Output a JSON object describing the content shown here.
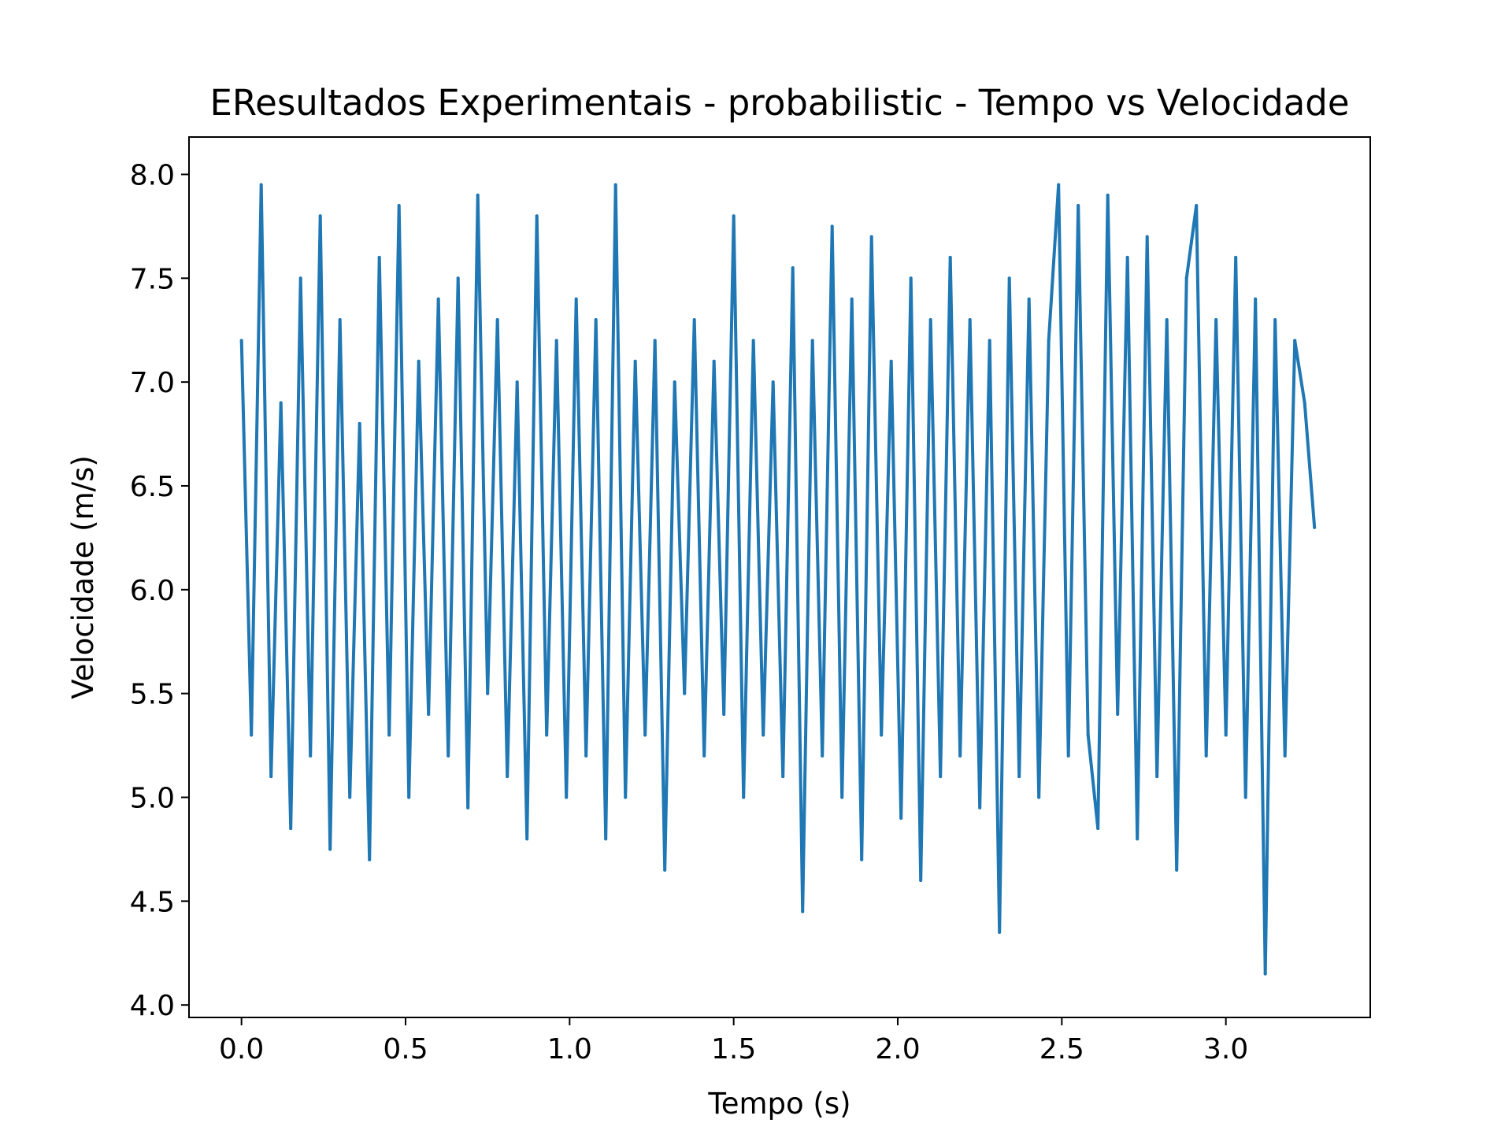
{
  "chart_data": {
    "type": "line",
    "title": "EResultados Experimentais - probabilistic - Tempo vs Velocidade",
    "xlabel": "Tempo (s)",
    "ylabel": "Velocidade (m/s)",
    "xlim": [
      -0.16,
      3.44
    ],
    "ylim": [
      3.94,
      8.18
    ],
    "xticks": [
      0.0,
      0.5,
      1.0,
      1.5,
      2.0,
      2.5,
      3.0
    ],
    "xtick_labels": [
      "0.0",
      "0.5",
      "1.0",
      "1.5",
      "2.0",
      "2.5",
      "3.0"
    ],
    "yticks": [
      4.0,
      4.5,
      5.0,
      5.5,
      6.0,
      6.5,
      7.0,
      7.5,
      8.0
    ],
    "ytick_labels": [
      "4.0",
      "4.5",
      "5.0",
      "5.5",
      "6.0",
      "6.5",
      "7.0",
      "7.5",
      "8.0"
    ],
    "grid": false,
    "legend": "none",
    "series": [
      {
        "color": "#1f77b4",
        "x": [
          0.0,
          0.03,
          0.06,
          0.09,
          0.12,
          0.15,
          0.18,
          0.21,
          0.24,
          0.27,
          0.3,
          0.33,
          0.36,
          0.39,
          0.42,
          0.45,
          0.48,
          0.51,
          0.54,
          0.57,
          0.6,
          0.63,
          0.66,
          0.69,
          0.72,
          0.75,
          0.78,
          0.81,
          0.84,
          0.87,
          0.9,
          0.93,
          0.96,
          0.99,
          1.02,
          1.05,
          1.08,
          1.11,
          1.14,
          1.17,
          1.2,
          1.23,
          1.26,
          1.29,
          1.32,
          1.35,
          1.38,
          1.41,
          1.44,
          1.47,
          1.5,
          1.53,
          1.56,
          1.59,
          1.62,
          1.65,
          1.68,
          1.71,
          1.74,
          1.77,
          1.8,
          1.83,
          1.86,
          1.89,
          1.92,
          1.95,
          1.98,
          2.01,
          2.04,
          2.07,
          2.1,
          2.13,
          2.16,
          2.19,
          2.22,
          2.25,
          2.28,
          2.31,
          2.34,
          2.37,
          2.4,
          2.43,
          2.46,
          2.49,
          2.52,
          2.55,
          2.58,
          2.61,
          2.64,
          2.67,
          2.7,
          2.73,
          2.76,
          2.79,
          2.82,
          2.85,
          2.88,
          2.91,
          2.94,
          2.97,
          3.0,
          3.03,
          3.06,
          3.09,
          3.12,
          3.15,
          3.18,
          3.21,
          3.24,
          3.27
        ],
        "y": [
          7.2,
          5.3,
          7.95,
          5.1,
          6.9,
          4.85,
          7.5,
          5.2,
          7.8,
          4.75,
          7.3,
          5.0,
          6.8,
          4.7,
          7.6,
          5.3,
          7.85,
          5.0,
          7.1,
          5.4,
          7.4,
          5.2,
          7.5,
          4.95,
          7.9,
          5.5,
          7.3,
          5.1,
          7.0,
          4.8,
          7.8,
          5.3,
          7.2,
          5.0,
          7.4,
          5.2,
          7.3,
          4.8,
          7.95,
          5.0,
          7.1,
          5.3,
          7.2,
          4.65,
          7.0,
          5.5,
          7.3,
          5.2,
          7.1,
          5.4,
          7.8,
          5.0,
          7.2,
          5.3,
          7.0,
          5.1,
          7.55,
          4.45,
          7.2,
          5.2,
          7.75,
          5.0,
          7.4,
          4.7,
          7.7,
          5.3,
          7.1,
          4.9,
          7.5,
          4.6,
          7.3,
          5.1,
          7.6,
          5.2,
          7.3,
          4.95,
          7.2,
          4.35,
          7.5,
          5.1,
          7.4,
          5.0,
          7.2,
          7.95,
          5.2,
          7.85,
          5.3,
          4.85,
          7.9,
          5.4,
          7.6,
          4.8,
          7.7,
          5.1,
          7.3,
          4.65,
          7.5,
          7.85,
          5.2,
          7.3,
          5.3,
          7.6,
          5.0,
          7.4,
          4.15,
          7.3,
          5.2,
          7.2,
          6.9,
          6.3
        ]
      }
    ]
  }
}
